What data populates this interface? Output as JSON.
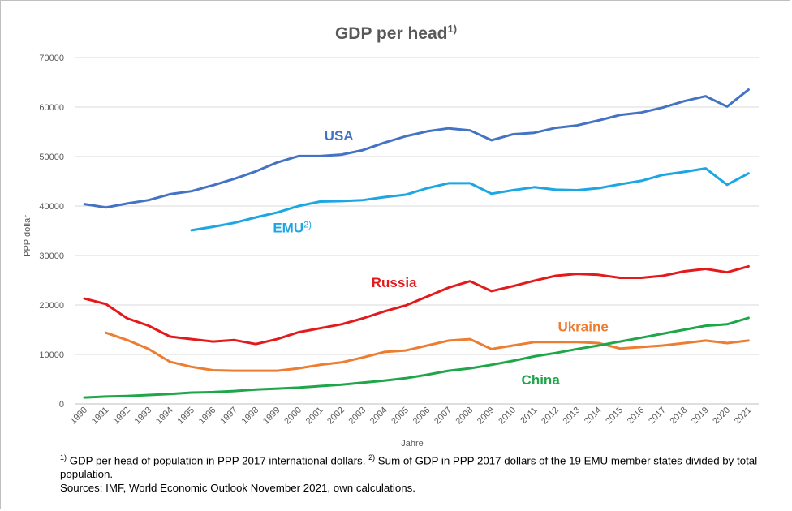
{
  "chart_data": {
    "type": "line",
    "title": "GDP per head",
    "title_sup": "1)",
    "xlabel": "Jahre",
    "ylabel": "PPP dollar",
    "ylim": [
      0,
      70000
    ],
    "yticks": [
      "0",
      "10000",
      "20000",
      "30000",
      "40000",
      "50000",
      "60000",
      "70000"
    ],
    "grid": true,
    "x": [
      "1990",
      "1991",
      "1992",
      "1993",
      "1994",
      "1995",
      "1996",
      "1997",
      "1998",
      "1999",
      "2000",
      "2001",
      "2002",
      "2003",
      "2004",
      "2005",
      "2006",
      "2007",
      "2008",
      "2009",
      "2010",
      "2011",
      "2012",
      "2013",
      "2014",
      "2015",
      "2016",
      "2017",
      "2018",
      "2019",
      "2020",
      "2021"
    ],
    "series": [
      {
        "name": "USA",
        "sup": "",
        "color": "#4472C4",
        "values": [
          40400,
          39700,
          40500,
          41200,
          42400,
          43000,
          44200,
          45500,
          47000,
          48800,
          50100,
          50100,
          50400,
          51300,
          52800,
          54100,
          55100,
          55700,
          55300,
          53300,
          54500,
          54800,
          55800,
          56300,
          57300,
          58400,
          58900,
          59900,
          61200,
          62200,
          60100,
          63500
        ]
      },
      {
        "name": "EMU",
        "sup": "2)",
        "color": "#1CA6E3",
        "values": [
          null,
          null,
          null,
          null,
          null,
          35100,
          35800,
          36600,
          37700,
          38700,
          40000,
          40900,
          41000,
          41200,
          41800,
          42300,
          43600,
          44600,
          44600,
          42500,
          43200,
          43800,
          43300,
          43200,
          43600,
          44400,
          45100,
          46300,
          46900,
          47600,
          44300,
          46600
        ]
      },
      {
        "name": "Russia",
        "sup": "",
        "color": "#E31A1C",
        "values": [
          21300,
          20200,
          17300,
          15800,
          13600,
          13100,
          12600,
          12900,
          12100,
          13100,
          14500,
          15300,
          16100,
          17300,
          18700,
          19900,
          21700,
          23500,
          24800,
          22800,
          23800,
          24900,
          25900,
          26300,
          26100,
          25500,
          25500,
          25900,
          26800,
          27300,
          26600,
          27800
        ]
      },
      {
        "name": "Ukraine",
        "sup": "",
        "color": "#ED7D31",
        "values": [
          null,
          14400,
          12900,
          11100,
          8500,
          7500,
          6800,
          6700,
          6700,
          6700,
          7200,
          7900,
          8400,
          9400,
          10500,
          10800,
          11800,
          12800,
          13100,
          11100,
          11800,
          12500,
          12500,
          12500,
          12300,
          11200,
          11500,
          11800,
          12300,
          12800,
          12300,
          12800
        ]
      },
      {
        "name": "China",
        "sup": "",
        "color": "#1FA64A",
        "values": [
          1300,
          1500,
          1600,
          1800,
          2000,
          2300,
          2400,
          2600,
          2900,
          3100,
          3300,
          3600,
          3900,
          4300,
          4700,
          5200,
          5900,
          6700,
          7200,
          7900,
          8700,
          9600,
          10300,
          11100,
          11800,
          12600,
          13400,
          14200,
          15000,
          15800,
          16100,
          17400
        ]
      }
    ],
    "footnotes": {
      "line1_sup1": "1)",
      "line1_text1": " GDP per head of population in PPP 2017 international dollars. ",
      "line1_sup2": "2)",
      "line1_text2": " Sum of GDP in PPP 2017 dollars of the 19 EMU member states divided by total population.",
      "line2": "Sources: IMF, World Economic Outlook November 2021, own calculations."
    }
  }
}
